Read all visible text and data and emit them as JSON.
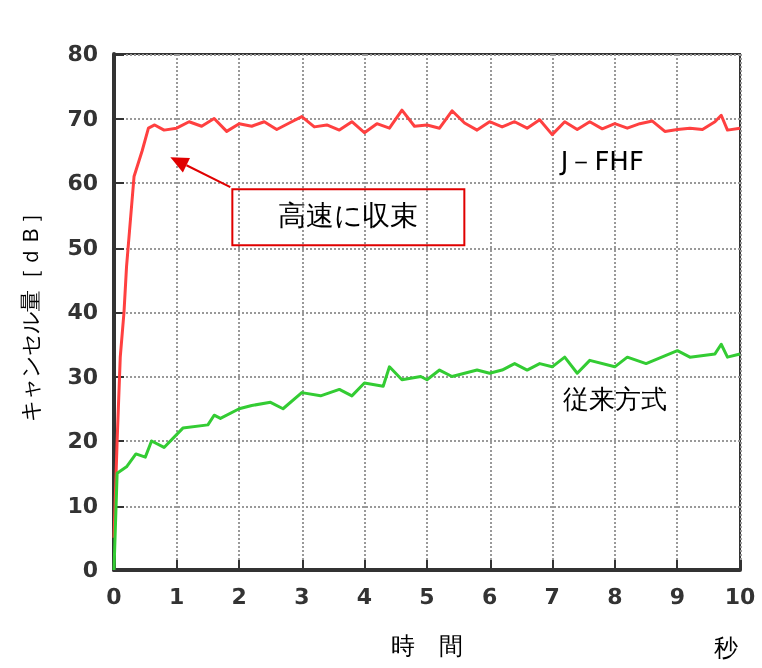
{
  "chart_data": {
    "type": "line",
    "xlabel": "時　間",
    "ylabel": "キャンセル量［ｄＢ］",
    "annotations": [
      "高速に収束",
      "秒"
    ],
    "xlim": [
      0,
      10
    ],
    "xticks": [
      0,
      1,
      2,
      3,
      4,
      5,
      6,
      7,
      8,
      9,
      10
    ],
    "ylim": [
      0,
      80
    ],
    "yticks": [
      0,
      10,
      20,
      30,
      40,
      50,
      60,
      70,
      80
    ],
    "grid": true,
    "marker": "none",
    "line_style": "solid",
    "series": [
      {
        "name": "J－FHF",
        "color": "#ff4040",
        "x": [
          0,
          0.05,
          0.1,
          0.16,
          0.2,
          0.32,
          0.45,
          0.55,
          0.65,
          0.8,
          1.0,
          1.2,
          1.4,
          1.6,
          1.8,
          2.0,
          2.2,
          2.4,
          2.6,
          2.8,
          3.0,
          3.2,
          3.4,
          3.6,
          3.8,
          4.0,
          4.2,
          4.4,
          4.6,
          4.8,
          5.0,
          5.2,
          5.4,
          5.6,
          5.8,
          6.0,
          6.2,
          6.4,
          6.6,
          6.8,
          7.0,
          7.2,
          7.4,
          7.6,
          7.8,
          8.0,
          8.2,
          8.4,
          8.6,
          8.8,
          9.0,
          9.2,
          9.4,
          9.6,
          9.7,
          9.8,
          10
        ],
        "values": [
          5,
          20,
          33,
          40,
          47,
          61,
          65,
          68.5,
          69,
          68.2,
          68.5,
          69.5,
          68.8,
          70,
          68,
          69.2,
          68.8,
          69.5,
          68.3,
          69.3,
          70.3,
          68.7,
          69,
          68.2,
          69.5,
          67.8,
          69.2,
          68.5,
          71.3,
          68.8,
          69,
          68.5,
          71.2,
          69.3,
          68.2,
          69.5,
          68.7,
          69.5,
          68.5,
          69.8,
          67.5,
          69.5,
          68.3,
          69.5,
          68.4,
          69.2,
          68.5,
          69.2,
          69.6,
          68,
          68.3,
          68.5,
          68.3,
          69.5,
          70.5,
          68.2,
          68.5
        ]
      },
      {
        "name": "従来方式",
        "color": "#33cc33",
        "x": [
          0,
          0.05,
          0.2,
          0.35,
          0.5,
          0.6,
          0.8,
          1.1,
          1.5,
          1.6,
          1.7,
          2.0,
          2.2,
          2.5,
          2.7,
          3.0,
          3.3,
          3.6,
          3.8,
          4.0,
          4.3,
          4.4,
          4.6,
          4.9,
          5.0,
          5.2,
          5.4,
          5.8,
          6.0,
          6.2,
          6.4,
          6.6,
          6.8,
          7.0,
          7.2,
          7.4,
          7.6,
          8.0,
          8.2,
          8.5,
          9.0,
          9.2,
          9.6,
          9.7,
          9.8,
          10
        ],
        "values": [
          0,
          15,
          16,
          18,
          17.5,
          20,
          19,
          22,
          22.5,
          24,
          23.5,
          25,
          25.5,
          26,
          25,
          27.5,
          27,
          28,
          27,
          29,
          28.5,
          31.5,
          29.5,
          30,
          29.5,
          31,
          30,
          31,
          30.5,
          31,
          32,
          31,
          32,
          31.5,
          33,
          30.5,
          32.5,
          31.5,
          33,
          32,
          34,
          33,
          33.5,
          35,
          33,
          33.5
        ]
      }
    ]
  }
}
